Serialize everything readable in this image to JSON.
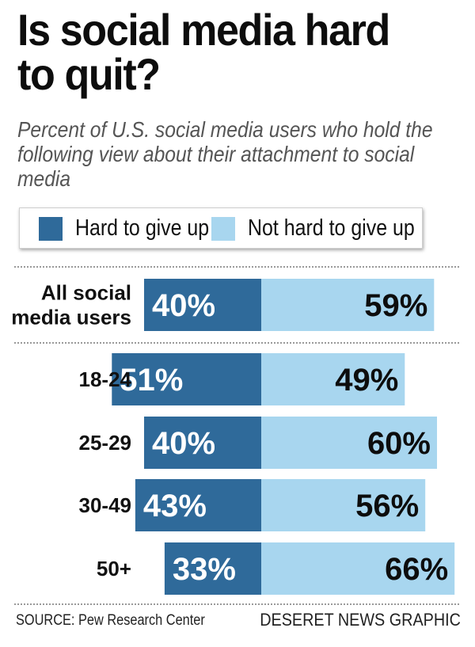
{
  "title": "Is social media hard to quit?",
  "subtitle": "Percent of U.S. social media users who hold the following view about their attachment to social media",
  "legend": {
    "hard_label": "Hard to give up",
    "not_hard_label": "Not hard to give up"
  },
  "colors": {
    "hard": "#2f6a9a",
    "not_hard": "#a8d6ef",
    "hard_text": "#ffffff",
    "not_hard_text": "#0d0d0d",
    "divider": "#9a9a9a"
  },
  "footer": {
    "source": "SOURCE: Pew Research Center",
    "credit": "DESERET NEWS GRAPHIC"
  },
  "chart_data": {
    "type": "bar",
    "orientation": "horizontal-diverging",
    "title": "Is social media hard to quit?",
    "subtitle": "Percent of U.S. social media users who hold the following view about their attachment to social media",
    "categories": [
      "All social media users",
      "18-24",
      "25-29",
      "30-49",
      "50+"
    ],
    "category_lines": [
      [
        "All social",
        "media users"
      ],
      [
        "18-24"
      ],
      [
        "25-29"
      ],
      [
        "30-49"
      ],
      [
        "50+"
      ]
    ],
    "series": [
      {
        "name": "Hard to give up",
        "values": [
          40,
          51,
          40,
          43,
          33
        ],
        "labels": [
          "40%",
          "51%",
          "40%",
          "43%",
          "33%"
        ]
      },
      {
        "name": "Not hard to give up",
        "values": [
          59,
          49,
          60,
          56,
          66
        ],
        "labels": [
          "59%",
          "49%",
          "60%",
          "56%",
          "66%"
        ]
      }
    ],
    "unit": "%",
    "xlim": [
      0,
      100
    ],
    "legend_position": "top",
    "grid": false
  }
}
